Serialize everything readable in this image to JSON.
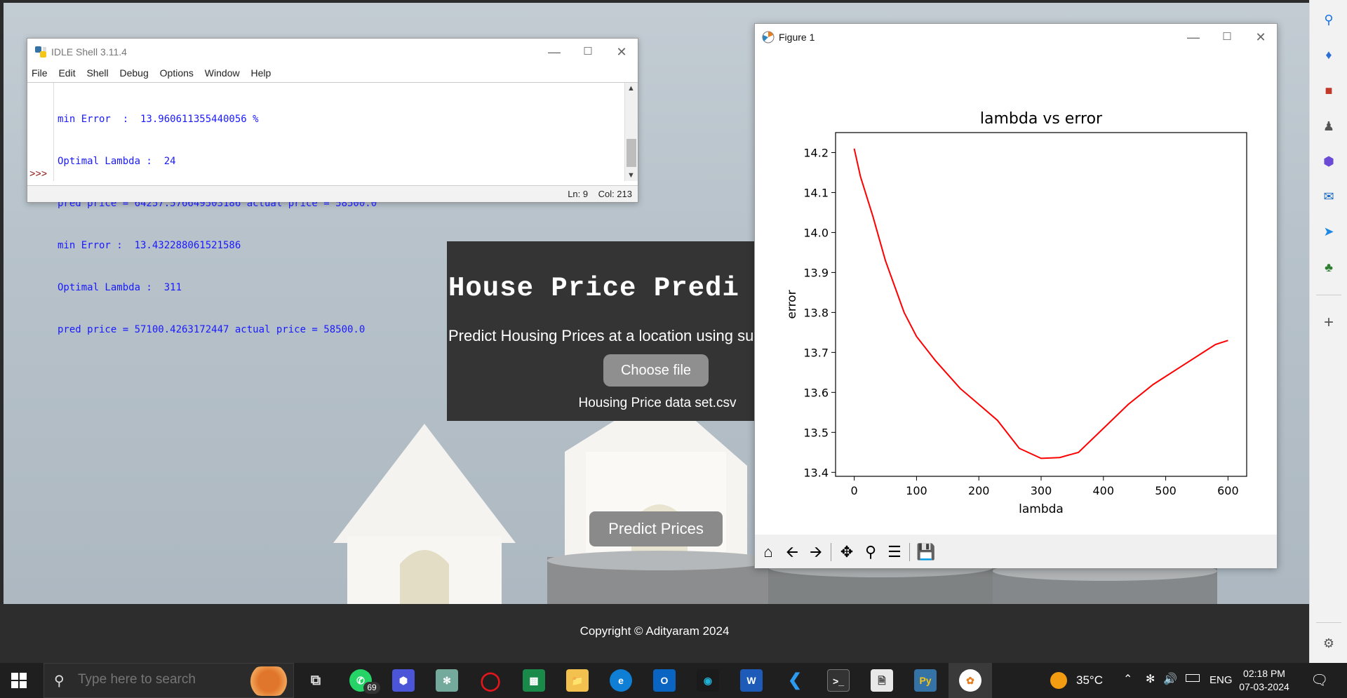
{
  "page": {
    "card_title": "House Price Predi",
    "card_subtitle": "Predict Housing Prices at a location using su",
    "choose_file_label": "Choose file",
    "file_name": "Housing Price data set.csv",
    "predict_label": "Predict Prices",
    "footer_text": "Copyright © Adityaram 2024"
  },
  "idle": {
    "title": "IDLE Shell 3.11.4",
    "menu": [
      "File",
      "Edit",
      "Shell",
      "Debug",
      "Options",
      "Window",
      "Help"
    ],
    "lines": [
      "min Error  :  13.960611355440056 %",
      "Optimal Lambda :  24",
      "pred price = 64257.576649503186 actual price = 58500.0",
      "min Error :  13.432288061521586",
      "Optimal Lambda :  311",
      "pred price = 57100.4263172447 actual price = 58500.0"
    ],
    "prompt": ">>>",
    "status_ln": "Ln: 9",
    "status_col": "Col: 213"
  },
  "figure": {
    "title": "Figure 1",
    "toolbar": [
      "home-icon",
      "back-icon",
      "forward-icon",
      "pan-icon",
      "zoom-icon",
      "configure-icon",
      "save-icon"
    ]
  },
  "chart_data": {
    "type": "line",
    "title": "lambda vs error",
    "xlabel": "lambda",
    "ylabel": "error",
    "xlim": [
      -30,
      630
    ],
    "ylim": [
      13.39,
      14.25
    ],
    "xticks": [
      0,
      100,
      200,
      300,
      400,
      500,
      600
    ],
    "yticks": [
      13.4,
      13.5,
      13.6,
      13.7,
      13.8,
      13.9,
      14.0,
      14.1,
      14.2
    ],
    "ytick_labels": [
      "13.4",
      "13.5",
      "13.6",
      "13.7",
      "13.8",
      "13.9",
      "14.0",
      "14.1",
      "14.2"
    ],
    "color": "#ff0000",
    "series": [
      {
        "x": [
          0,
          10,
          30,
          50,
          80,
          100,
          130,
          170,
          200,
          230,
          265,
          300,
          330,
          360,
          400,
          440,
          480,
          520,
          560,
          580,
          600
        ],
        "y": [
          14.21,
          14.14,
          14.04,
          13.93,
          13.8,
          13.74,
          13.68,
          13.61,
          13.57,
          13.53,
          13.46,
          13.435,
          13.437,
          13.45,
          13.51,
          13.57,
          13.62,
          13.66,
          13.7,
          13.72,
          13.73
        ]
      }
    ]
  },
  "taskbar": {
    "search_placeholder": "Type here to search",
    "whatsapp_badge": "69",
    "weather": "35°C",
    "language": "ENG",
    "time": "02:18 PM",
    "date": "07-03-2024"
  }
}
